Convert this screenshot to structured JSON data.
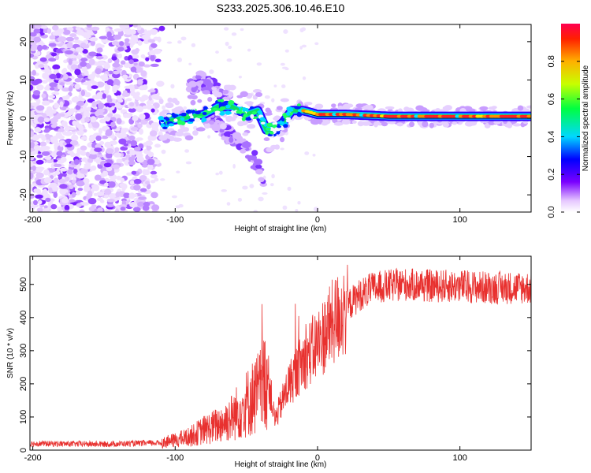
{
  "title": "S233.2025.306.10.46.E10",
  "chart_data": [
    {
      "type": "heatmap",
      "xlabel": "Height of straight line (km)",
      "ylabel": "Frequency (Hz)",
      "xlim": [
        -202,
        150
      ],
      "ylim": [
        -24.5,
        24.5
      ],
      "xticks": [
        -200,
        -100,
        0,
        100
      ],
      "yticks": [
        -20,
        -10,
        0,
        10,
        20
      ],
      "colorbar": {
        "label": "Normalized spectral amplitude",
        "range": [
          0,
          1
        ],
        "ticks": [
          "0.0",
          "0.2",
          "0.4",
          "0.6",
          "0.8"
        ],
        "tick_values": [
          0.0,
          0.2,
          0.4,
          0.6,
          0.8
        ]
      },
      "features": {
        "noise_region_x": [
          -202,
          -108
        ],
        "ridge_x": [
          -110,
          150
        ],
        "ridge_freq_hz": [
          [
            -108,
            -1
          ],
          [
            -95,
            0
          ],
          [
            -80,
            1
          ],
          [
            -70,
            3
          ],
          [
            -60,
            3
          ],
          [
            -50,
            1
          ],
          [
            -42,
            2
          ],
          [
            -36,
            -3
          ],
          [
            -30,
            -3
          ],
          [
            -24,
            -1
          ],
          [
            -18,
            2
          ],
          [
            -10,
            2
          ],
          [
            0,
            1
          ],
          [
            20,
            1
          ],
          [
            50,
            0.5
          ],
          [
            80,
            0.5
          ],
          [
            110,
            0.5
          ],
          [
            150,
            0.5
          ]
        ],
        "lower_branch_freq_hz": [
          [
            -80,
            1
          ],
          [
            -60,
            -5
          ],
          [
            -45,
            -10
          ],
          [
            -38,
            -16
          ]
        ],
        "upper_branch_freq_hz": [
          [
            -90,
            8
          ],
          [
            -82,
            10
          ],
          [
            -72,
            8
          ],
          [
            -62,
            4
          ]
        ]
      }
    },
    {
      "type": "line",
      "xlabel": "Height of straight line (km)",
      "ylabel": "SNR (10 * v/v)",
      "xlim": [
        -202,
        150
      ],
      "ylim": [
        0,
        585
      ],
      "xticks": [
        -200,
        -100,
        0,
        100
      ],
      "yticks": [
        0,
        100,
        200,
        300,
        400,
        500
      ],
      "color": "#e8312f",
      "series": [
        {
          "name": "SNR",
          "x": [
            -202,
            -150,
            -110,
            -100,
            -90,
            -80,
            -70,
            -60,
            -50,
            -40,
            -35,
            -30,
            -20,
            -10,
            0,
            10,
            20,
            30,
            40,
            60,
            80,
            100,
            120,
            150
          ],
          "y": [
            20,
            18,
            22,
            30,
            40,
            60,
            75,
            100,
            140,
            180,
            230,
            90,
            200,
            270,
            320,
            380,
            430,
            470,
            490,
            500,
            495,
            495,
            490,
            490
          ]
        }
      ]
    }
  ]
}
